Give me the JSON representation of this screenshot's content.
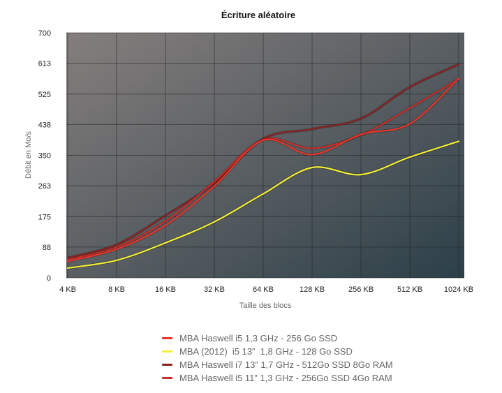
{
  "chart_data": {
    "type": "line",
    "title": "Écriture aléatoire",
    "xlabel": "Taille des blocs",
    "ylabel": "Débit en Mo/s",
    "categories": [
      "4 KB",
      "8 KB",
      "16 KB",
      "32 KB",
      "64 KB",
      "128 KB",
      "256 KB",
      "512 KB",
      "1024 KB"
    ],
    "yticks": [
      0,
      88,
      175,
      263,
      350,
      438,
      525,
      613,
      700
    ],
    "ylim": [
      0,
      700
    ],
    "grid": true,
    "legend_position": "bottom",
    "series": [
      {
        "name": "MBA Haswell i5 1,3 GHz - 256 Go SSD",
        "color": "#e8352a",
        "values": [
          47,
          82,
          150,
          262,
          393,
          352,
          410,
          440,
          570
        ]
      },
      {
        "name": "MBA (2012)  i5 13”  1,8 GHz - 128 Go SSD",
        "color": "#f2ee36",
        "values": [
          28,
          50,
          100,
          160,
          240,
          315,
          295,
          345,
          390
        ]
      },
      {
        "name": "MBA Haswell i7 13” 1,7 GHz - 512Go SSD 8Go RAM",
        "color": "#8a2222",
        "values": [
          57,
          95,
          178,
          270,
          397,
          425,
          455,
          545,
          610
        ]
      },
      {
        "name": "MBA Haswell i5 11” 1,3 GHz - 256Go SSD 4Go RAM",
        "color": "#c9302c",
        "values": [
          52,
          88,
          162,
          275,
          395,
          370,
          408,
          485,
          568
        ]
      }
    ]
  }
}
